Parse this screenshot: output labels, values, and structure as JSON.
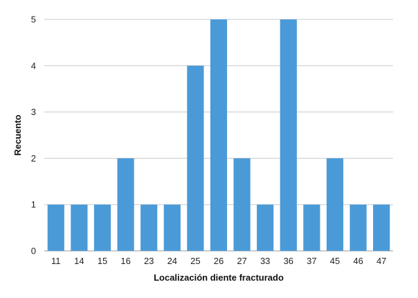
{
  "chart_data": {
    "type": "bar",
    "categories": [
      "11",
      "14",
      "15",
      "16",
      "23",
      "24",
      "25",
      "26",
      "27",
      "33",
      "36",
      "37",
      "45",
      "46",
      "47"
    ],
    "values": [
      1,
      1,
      1,
      2,
      1,
      1,
      4,
      5,
      2,
      1,
      5,
      1,
      2,
      1,
      1
    ],
    "xlabel": "Localización diente fracturado",
    "ylabel": "Recuento",
    "ylim": [
      0,
      5
    ],
    "yticks": [
      0,
      1,
      2,
      3,
      4,
      5
    ],
    "grid": true,
    "bar_color": "#4a9ad8"
  }
}
